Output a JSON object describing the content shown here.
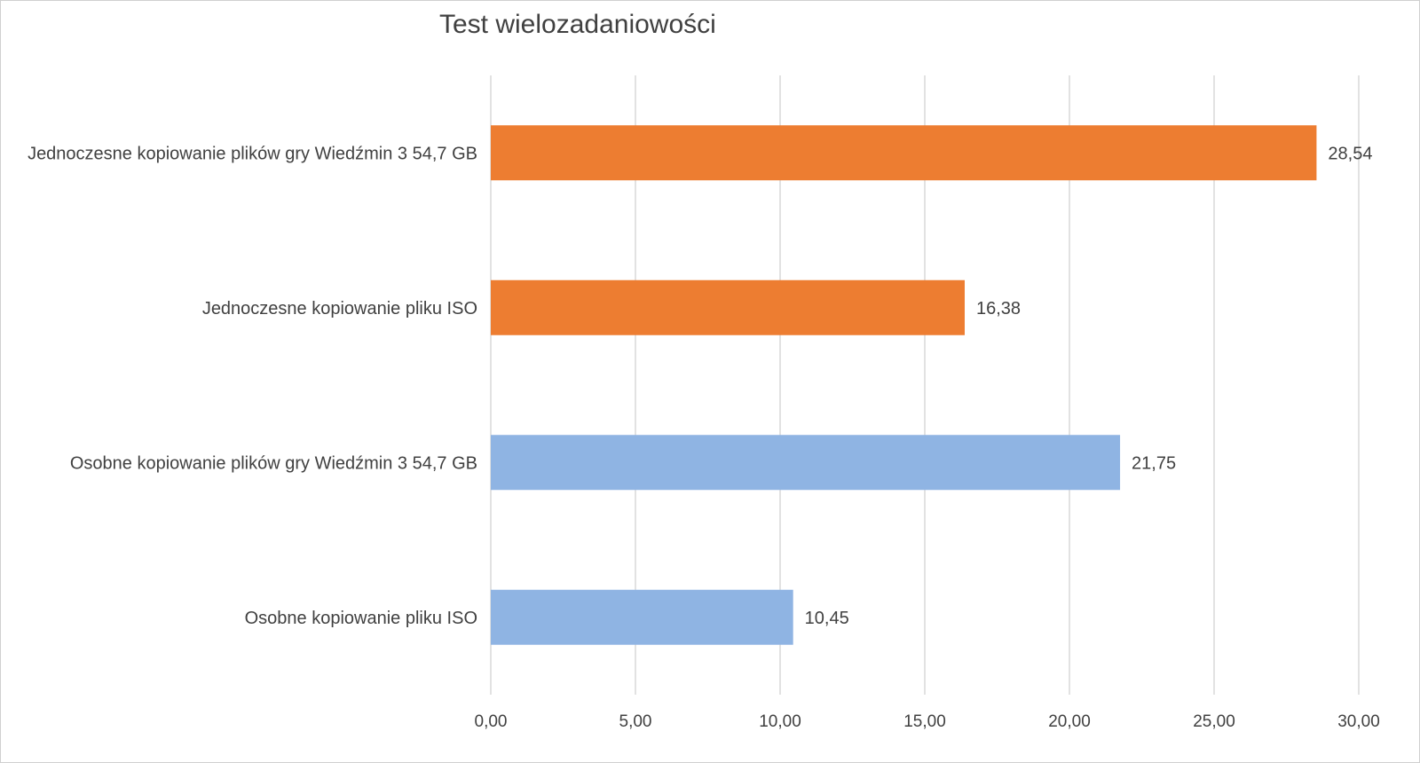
{
  "chart_data": {
    "type": "bar",
    "orientation": "horizontal",
    "title": "Test wielozadaniowości",
    "xlabel": "",
    "ylabel": "",
    "categories": [
      "Jednoczesne kopiowanie plików gry Wiedźmin 3 54,7 GB",
      "Jednoczesne kopiowanie pliku ISO",
      "Osobne kopiowanie plików gry Wiedźmin 3 54,7 GB",
      "Osobne kopiowanie pliku ISO"
    ],
    "values": [
      28.54,
      16.38,
      21.75,
      10.45
    ],
    "value_labels": [
      "28,54",
      "16,38",
      "21,75",
      "10,45"
    ],
    "bar_colors": [
      "#ED7D31",
      "#ED7D31",
      "#8FB4E3",
      "#8FB4E3"
    ],
    "xlim": [
      0,
      30
    ],
    "x_ticks": [
      0,
      5,
      10,
      15,
      20,
      25,
      30
    ],
    "x_tick_labels": [
      "0,00",
      "5,00",
      "10,00",
      "15,00",
      "20,00",
      "25,00",
      "30,00"
    ],
    "grid": true,
    "legend": "none"
  }
}
